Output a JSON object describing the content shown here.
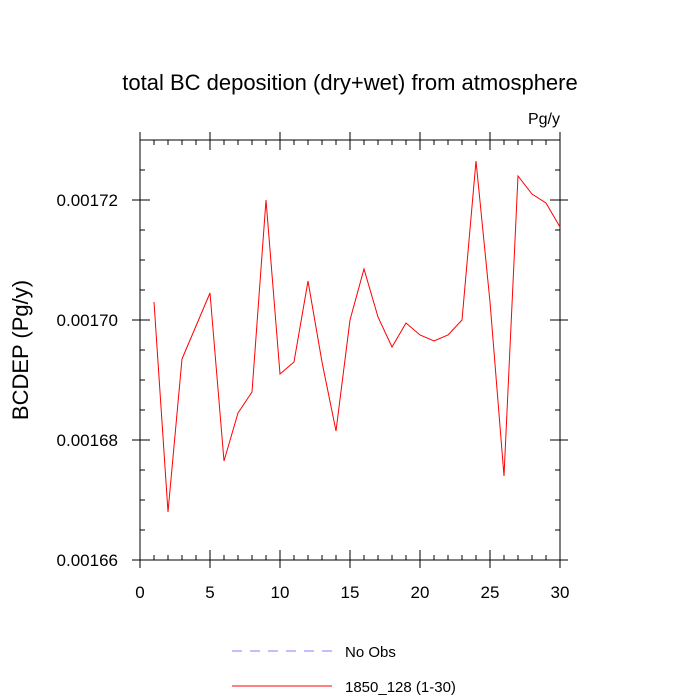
{
  "chart_data": {
    "type": "line",
    "title": "total BC deposition (dry+wet) from atmosphere",
    "units": "Pg/y",
    "xlabel": "",
    "ylabel": "BCDEP  (Pg/y)",
    "xlim": [
      0,
      30
    ],
    "ylim": [
      0.00166,
      0.00173
    ],
    "xticks": [
      0,
      5,
      10,
      15,
      20,
      25,
      30
    ],
    "xtick_labels": [
      "0",
      "5",
      "10",
      "15",
      "20",
      "25",
      "30"
    ],
    "yticks": [
      0.00166,
      0.00168,
      0.0017,
      0.00172
    ],
    "ytick_labels": [
      "0.00166",
      "0.00168",
      "0.00170",
      "0.00172"
    ],
    "grid": false,
    "legend_position": "bottom",
    "series": [
      {
        "name": "No Obs",
        "color": "#8080ff",
        "style": "dashed",
        "x": [],
        "values": []
      },
      {
        "name": "1850_128 (1-30)",
        "color": "#ff0000",
        "style": "solid",
        "x": [
          1,
          2,
          3,
          4,
          5,
          6,
          7,
          8,
          9,
          10,
          11,
          12,
          13,
          14,
          15,
          16,
          17,
          18,
          19,
          20,
          21,
          22,
          23,
          24,
          25,
          26,
          27,
          28,
          29,
          30
        ],
        "values": [
          0.001703,
          0.001668,
          0.0016935,
          0.001699,
          0.0017045,
          0.0016765,
          0.0016845,
          0.001688,
          0.00172,
          0.001691,
          0.001693,
          0.0017065,
          0.001693,
          0.0016815,
          0.0017,
          0.0017085,
          0.0017005,
          0.0016955,
          0.0016995,
          0.0016975,
          0.0016965,
          0.0016975,
          0.0017,
          0.0017265,
          0.001703,
          0.001674,
          0.001724,
          0.001721,
          0.0017195,
          0.0017155
        ]
      }
    ]
  }
}
